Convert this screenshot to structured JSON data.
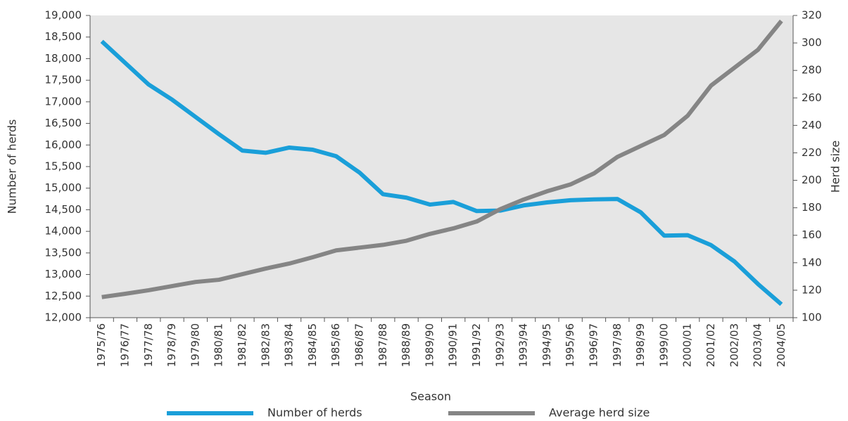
{
  "chart_data": {
    "type": "line",
    "x_label": "Season",
    "y_label": "Number of herds",
    "y2_label": "Herd size",
    "categories": [
      "1975/76",
      "1976/77",
      "1977/78",
      "1978/79",
      "1979/80",
      "1980/81",
      "1981/82",
      "1982/83",
      "1983/84",
      "1984/85",
      "1985/86",
      "1986/87",
      "1987/88",
      "1988/89",
      "1989/90",
      "1990/91",
      "1991/92",
      "1992/93",
      "1993/94",
      "1994/95",
      "1995/96",
      "1996/97",
      "1997/98",
      "1998/99",
      "1999/00",
      "2000/01",
      "2001/02",
      "2002/03",
      "2003/04",
      "2004/05"
    ],
    "series": [
      {
        "name": "Number of herds",
        "color": "#1a9fd9",
        "values": [
          18400,
          17900,
          17400,
          17050,
          16650,
          16250,
          15870,
          15820,
          15940,
          15890,
          15740,
          15360,
          14860,
          14780,
          14620,
          14680,
          14470,
          14480,
          14600,
          14670,
          14720,
          14740,
          14750,
          14440,
          13900,
          13910,
          13680,
          13300,
          12780,
          12310
        ]
      },
      {
        "name": "Average herd size",
        "color": "#858585",
        "axis": "y2",
        "values": [
          115,
          117.4,
          120,
          123,
          126,
          127.6,
          131.7,
          135.8,
          139.4,
          144,
          149,
          151,
          153,
          156,
          161,
          165,
          170,
          179,
          186,
          192,
          197,
          205,
          217,
          225,
          233,
          247,
          269,
          282,
          295,
          316
        ]
      }
    ],
    "ylim": [
      12000,
      19000
    ],
    "yticks": [
      {
        "value": 12000,
        "label": "12,000"
      },
      {
        "value": 12500,
        "label": "12,500"
      },
      {
        "value": 13000,
        "label": "13,000"
      },
      {
        "value": 13500,
        "label": "13,500"
      },
      {
        "value": 14000,
        "label": "14,000"
      },
      {
        "value": 14500,
        "label": "14,500"
      },
      {
        "value": 15000,
        "label": "15,000"
      },
      {
        "value": 15500,
        "label": "15,500"
      },
      {
        "value": 16000,
        "label": "16,000"
      },
      {
        "value": 16500,
        "label": "16,500"
      },
      {
        "value": 17000,
        "label": "17,000"
      },
      {
        "value": 17500,
        "label": "17,500"
      },
      {
        "value": 18000,
        "label": "18,000"
      },
      {
        "value": 18500,
        "label": "18,500"
      },
      {
        "value": 19000,
        "label": "19,000"
      }
    ],
    "y2lim": [
      100,
      320
    ],
    "y2ticks": [
      100,
      120,
      140,
      160,
      180,
      200,
      220,
      240,
      260,
      280,
      300,
      320
    ],
    "plot_background": "#e6e6e6",
    "legend": "bottom"
  }
}
